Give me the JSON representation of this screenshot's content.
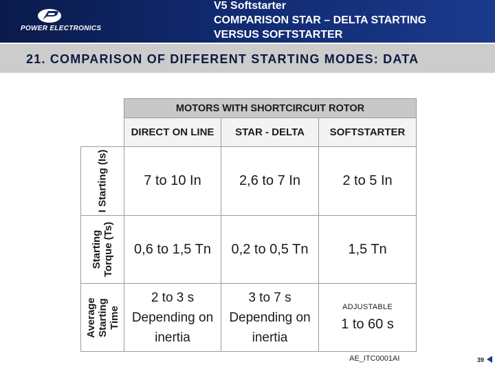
{
  "header": {
    "logo_text": "POWER ELECTRONICS",
    "title_line1": "V5 Softstarter",
    "title_line2": "COMPARISON STAR – DELTA STARTING",
    "title_line3": "VERSUS SOFTSTARTER",
    "colors": {
      "header_bg": "#10286c",
      "subtitle_bg": "#cccccc"
    }
  },
  "subtitle": "21. COMPARISON OF DIFFERENT STARTING MODES: DATA",
  "table": {
    "title": "MOTORS WITH SHORTCIRCUIT ROTOR",
    "columns": [
      "DIRECT ON LINE",
      "STAR - DELTA",
      "SOFTSTARTER"
    ],
    "rows": [
      {
        "label_line1": "I Starting (Is)",
        "label_line2": "",
        "label_line3": "",
        "cells": [
          "7 to 10 In",
          "2,6 to 7 In",
          "2 to 5 In"
        ]
      },
      {
        "label_line1": "Starting",
        "label_line2": "Torque (Ts)",
        "label_line3": "",
        "cells": [
          "0,6 to 1,5 Tn",
          "0,2 to 0,5 Tn",
          "1,5 Tn"
        ]
      },
      {
        "label_line1": "Average",
        "label_line2": "Starting",
        "label_line3": "Time",
        "cells_multi": [
          [
            "2 to 3 s",
            "Depending on",
            "inertia"
          ],
          [
            "3 to 7 s",
            "Depending on",
            "inertia"
          ]
        ],
        "softstarter_note": "ADJUSTABLE",
        "softstarter_value": "1 to 60 s"
      }
    ]
  },
  "footer": {
    "code": "AE_ITC0001AI",
    "page": "39"
  }
}
